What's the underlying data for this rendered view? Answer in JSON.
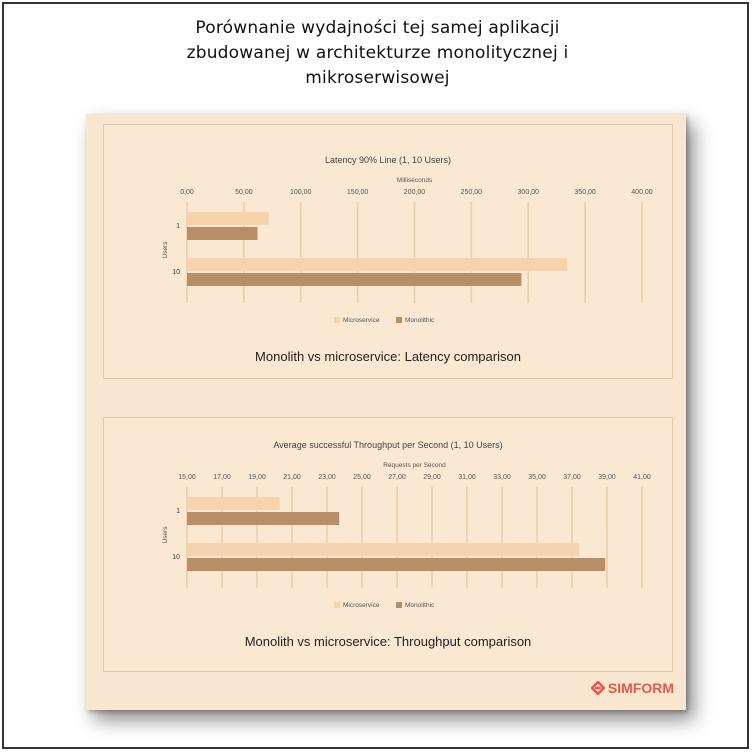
{
  "heading": {
    "line1": "Porównanie wydajności tej samej aplikacji",
    "line2": "zbudowanej w architekturze monolitycznej i",
    "line3": "mikroserwisowej"
  },
  "brand": {
    "logo_text": "SIMFORM",
    "color": "#e8574a"
  },
  "colors": {
    "microservice": "#f5d3ad",
    "monolithic": "#b78e66",
    "grid": "#e8cfae"
  },
  "chart_data": [
    {
      "type": "bar",
      "orientation": "horizontal",
      "title": "Latency 90% Line (1, 10 Users)",
      "caption": "Monolith vs microservice: Latency comparison",
      "xlabel": "Milliseconds",
      "ylabel": "Users",
      "xlim": [
        0,
        400
      ],
      "xticks": [
        "0,00",
        "50,00",
        "100,00",
        "150,00",
        "200,00",
        "250,00",
        "300,00",
        "350,00",
        "400,00"
      ],
      "categories": [
        "1",
        "10"
      ],
      "series": [
        {
          "name": "Microservice",
          "values": [
            72,
            334
          ]
        },
        {
          "name": "Monolithic",
          "values": [
            62,
            294
          ]
        }
      ],
      "legend": "bottom"
    },
    {
      "type": "bar",
      "orientation": "horizontal",
      "title": "Average successful Throughput per Second (1, 10 Users)",
      "caption": "Monolith vs microservice: Throughput comparison",
      "xlabel": "Requests per Second",
      "ylabel": "Users",
      "xlim": [
        15,
        41
      ],
      "xticks": [
        "15,00",
        "17,00",
        "19,00",
        "21,00",
        "23,00",
        "25,00",
        "27,00",
        "29,00",
        "31,00",
        "33,00",
        "35,00",
        "37,00",
        "39,00",
        "41,00"
      ],
      "categories": [
        "1",
        "10"
      ],
      "series": [
        {
          "name": "Microservice",
          "values": [
            20.3,
            37.4
          ]
        },
        {
          "name": "Monolithic",
          "values": [
            23.7,
            38.9
          ]
        }
      ],
      "legend": "bottom"
    }
  ]
}
